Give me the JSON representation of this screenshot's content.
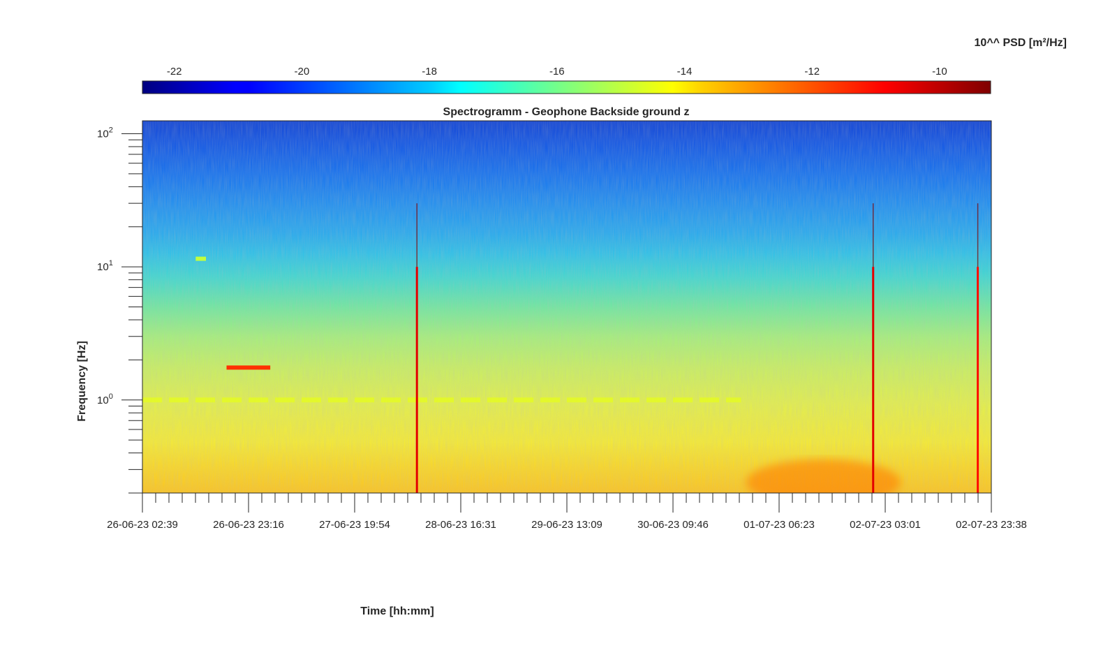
{
  "chart_data": {
    "type": "heatmap",
    "title": "Spectrogramm - Geophone Backside ground z",
    "xlabel": "Time [hh:mm]",
    "ylabel": "Frequency [Hz]",
    "y_scale": "log",
    "ylim": [
      0.2,
      125
    ],
    "y_ticks": [
      {
        "value": 1,
        "base": "10",
        "exp": "0"
      },
      {
        "value": 10,
        "base": "10",
        "exp": "1"
      },
      {
        "value": 100,
        "base": "10",
        "exp": "2"
      }
    ],
    "x_start": "26-06-23 02:39",
    "x_end": "02-07-23 23:38",
    "x_tick_labels": [
      "26-06-23 02:39",
      "26-06-23 23:16",
      "27-06-23 19:54",
      "28-06-23 16:31",
      "29-06-23 13:09",
      "30-06-23 09:46",
      "01-07-23 06:23",
      "02-07-23 03:01",
      "02-07-23 23:38"
    ],
    "colorbar": {
      "label": "10^^ PSD [m²/Hz]",
      "clim": [
        -22.5,
        -9.2
      ],
      "tick_values": [
        -22,
        -20,
        -18,
        -16,
        -14,
        -12,
        -10
      ],
      "tick_labels": [
        "-22",
        "-20",
        "-18",
        "-16",
        "-14",
        "-12",
        "-10"
      ],
      "colormap": "jet"
    },
    "z_description_levels": {
      "above_50Hz": -21.5,
      "10_to_30Hz": -19,
      "3_to_10Hz": -17,
      "1_to_3Hz": -15.5,
      "below_0.5Hz": -13.5
    },
    "features": [
      {
        "kind": "tonal_line",
        "freq": 1.75,
        "t_start": "26-06-23 19:00",
        "t_end": "27-06-23 03:30",
        "level": -11.5
      },
      {
        "kind": "tonal_line",
        "freq": 1.0,
        "t_start": "26-06-23 02:39",
        "t_end": "30-06-23 23:00",
        "level": -14.5
      },
      {
        "kind": "tonal_line",
        "freq": 11.5,
        "t_start": "26-06-23 13:00",
        "t_end": "26-06-23 15:00",
        "level": -15
      },
      {
        "kind": "broadband_event",
        "time": "28-06-23 08:00",
        "level": -10.5
      },
      {
        "kind": "broadband_event",
        "time": "02-07-23 00:40",
        "level": -10.5
      },
      {
        "kind": "broadband_event",
        "time": "02-07-23 21:00",
        "level": -11
      },
      {
        "kind": "low_freq_energy",
        "t_start": "01-07-23 00:00",
        "t_end": "02-07-23 06:00",
        "freq_max": 0.35,
        "level": -12.5
      }
    ]
  }
}
